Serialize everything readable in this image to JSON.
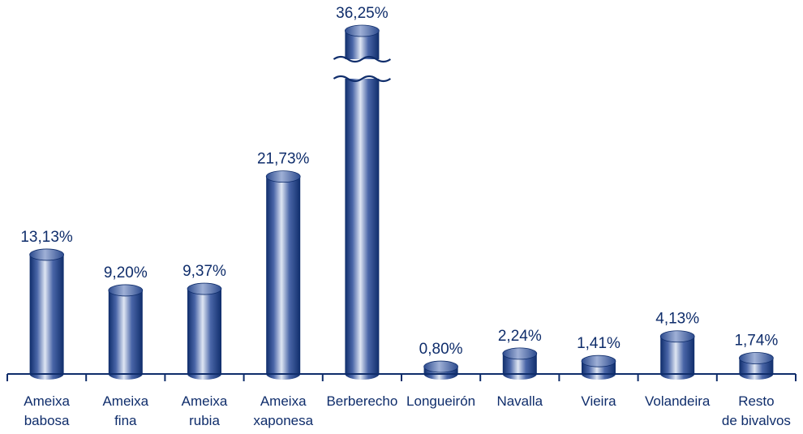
{
  "chart_data": {
    "type": "bar",
    "title": "",
    "xlabel": "",
    "ylabel": "",
    "categories": [
      [
        "Ameixa",
        "babosa"
      ],
      [
        "Ameixa",
        "fina"
      ],
      [
        "Ameixa",
        "rubia"
      ],
      [
        "Ameixa",
        "xaponesa"
      ],
      [
        "Berberecho"
      ],
      [
        "Longueirón"
      ],
      [
        "Navalla"
      ],
      [
        "Vieira"
      ],
      [
        "Volandeira"
      ],
      [
        "Resto",
        "de bivalvos"
      ]
    ],
    "values": [
      13.13,
      9.2,
      9.37,
      21.73,
      36.25,
      0.8,
      2.24,
      1.41,
      4.13,
      1.74
    ],
    "value_labels": [
      "13,13%",
      "9,20%",
      "9,37%",
      "21,73%",
      "36,25%",
      "0,80%",
      "2,24%",
      "1,41%",
      "4,13%",
      "1,74%"
    ],
    "axis_break": {
      "category": "Berberecho"
    },
    "grid": false,
    "legend": "none",
    "colors": {
      "bar_dark": "#0f2d6b",
      "bar_light": "#dfe6f3",
      "text": "#0f2d6b",
      "axis": "#0f2d6b"
    }
  }
}
